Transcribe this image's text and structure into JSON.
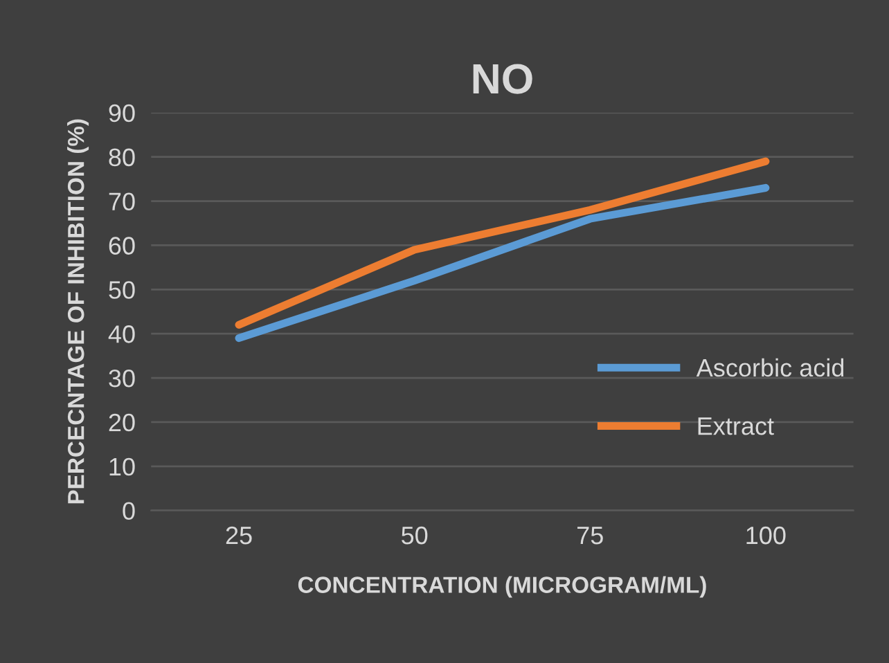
{
  "chart_data": {
    "type": "line",
    "title": "NO",
    "xlabel": "CONCENTRATION (MICROGRAM/ML)",
    "ylabel": "PERCECNTAGE OF INHIBITION (%)",
    "categories": [
      "25",
      "50",
      "75",
      "100"
    ],
    "series": [
      {
        "name": "Ascorbic acid",
        "color": "#5b9bd5",
        "values": [
          39,
          52,
          66,
          73
        ]
      },
      {
        "name": "Extract",
        "color": "#ed7d31",
        "values": [
          42,
          59,
          68,
          79
        ]
      }
    ],
    "ylim": [
      0,
      90
    ],
    "yticks": [
      0,
      10,
      20,
      30,
      40,
      50,
      60,
      70,
      80,
      90
    ],
    "grid": "y",
    "legend": "right",
    "marker": "none",
    "line_style": "solid"
  }
}
